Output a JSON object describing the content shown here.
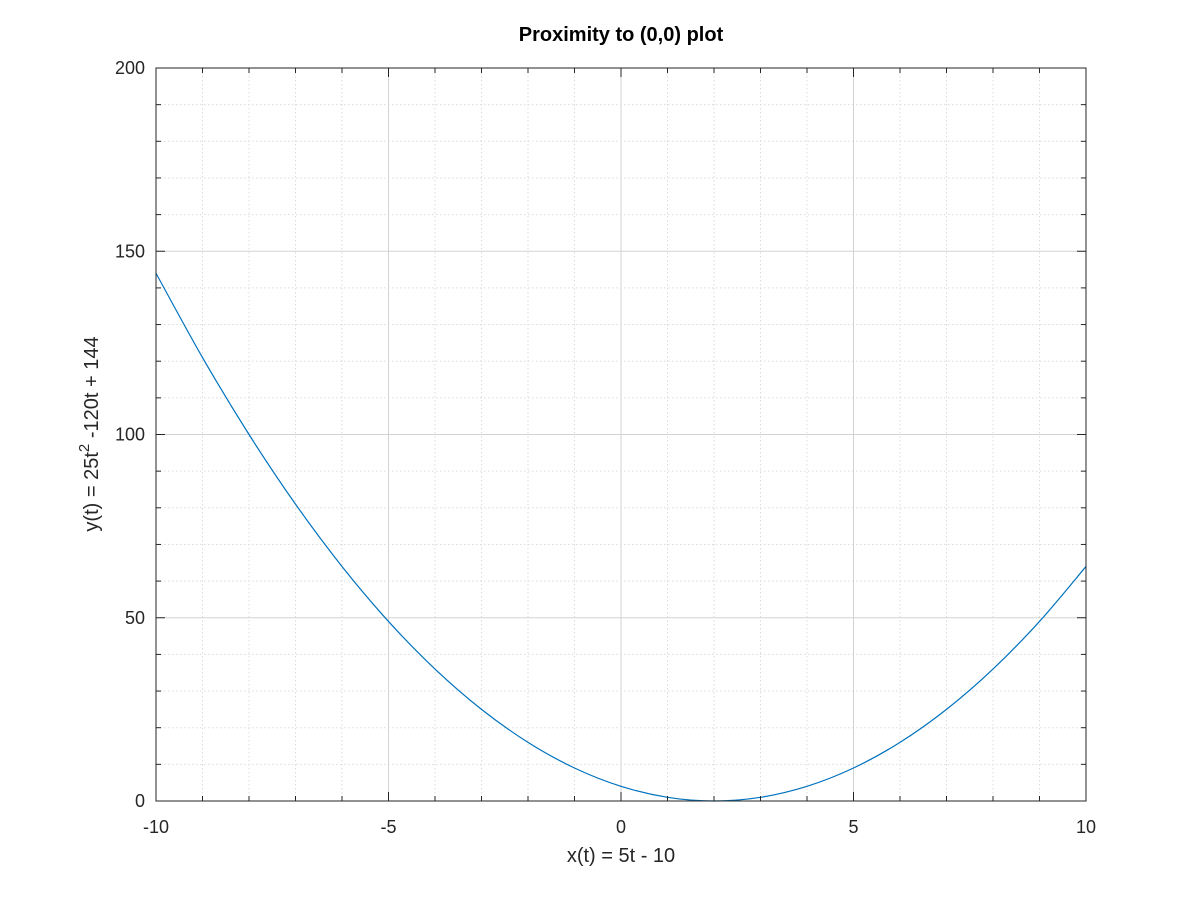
{
  "chart_data": {
    "type": "line",
    "title": "Proximity to (0,0) plot",
    "xlabel": "x(t) = 5t - 10",
    "ylabel": {
      "before": "y(t) = 25t",
      "superscript": "2",
      "after": " -120t + 144"
    },
    "xlim": [
      -10,
      10
    ],
    "ylim": [
      0,
      200
    ],
    "x_ticks": [
      -10,
      -5,
      0,
      5,
      10
    ],
    "x_tick_labels": [
      "-10",
      "-5",
      "0",
      "5",
      "10"
    ],
    "y_ticks": [
      0,
      50,
      100,
      150,
      200
    ],
    "y_tick_labels": [
      "0",
      "50",
      "100",
      "150",
      "200"
    ],
    "x_minor_step": 1,
    "y_minor_step": 10,
    "grid": true,
    "minor_grid": true,
    "series": [
      {
        "color": "#0072bd",
        "x": [
          -10,
          -9,
          -8,
          -7,
          -6,
          -5,
          -4,
          -3,
          -2,
          -1,
          0,
          1,
          2,
          3,
          4,
          5,
          6,
          7,
          8,
          9,
          10
        ],
        "y": [
          144,
          121,
          100,
          81,
          64,
          49,
          36,
          25,
          16,
          9,
          4,
          1,
          0,
          1,
          4,
          9,
          16,
          25,
          36,
          49,
          64
        ]
      }
    ]
  }
}
